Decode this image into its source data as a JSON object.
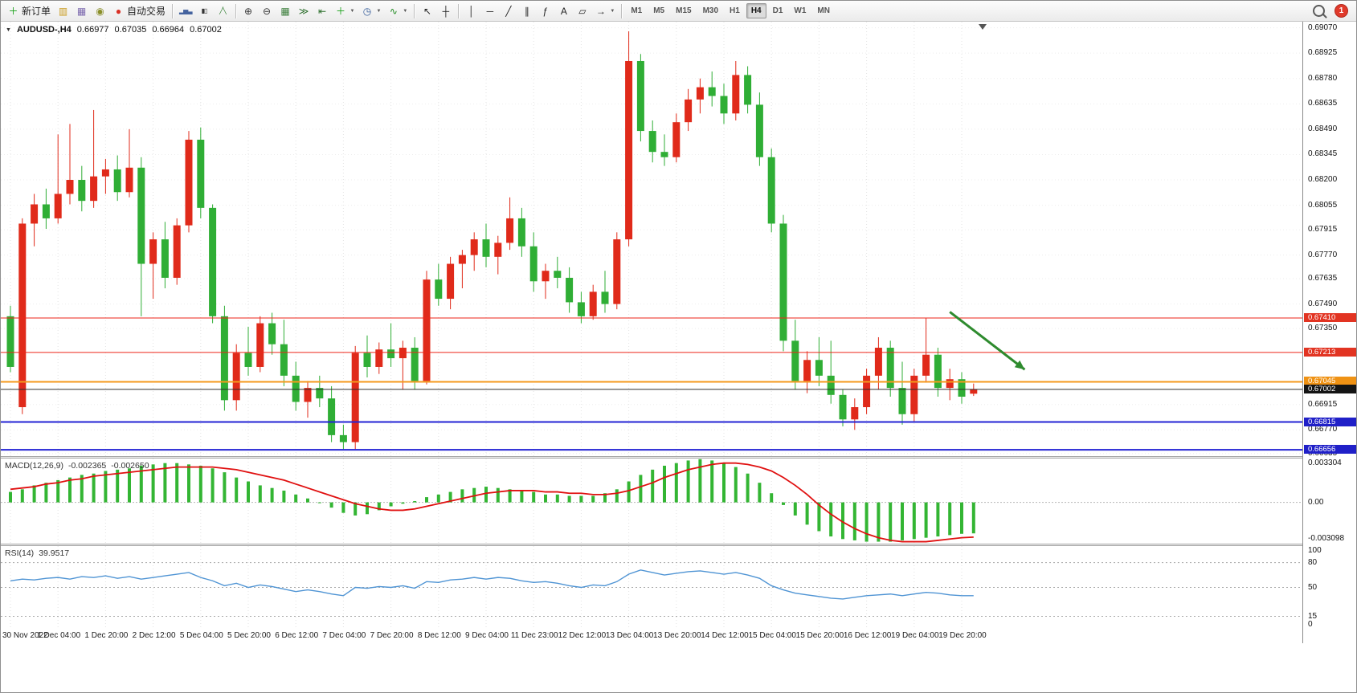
{
  "icons": {
    "caret_down": "▼"
  },
  "toolbar": {
    "items": [
      {
        "type": "button",
        "name": "new-order-button",
        "icon": "new-order-icon",
        "glyph": "＋",
        "glyph_color": "#16a016",
        "label": "新订单"
      },
      {
        "type": "button",
        "name": "charts-profile-button",
        "icon": "profile-icon",
        "glyph": "▥",
        "glyph_color": "#c99b1d"
      },
      {
        "type": "button",
        "name": "market-watch-button",
        "icon": "market-watch-icon",
        "glyph": "▦",
        "glyph_color": "#7b68ae"
      },
      {
        "type": "button",
        "name": "data-window-button",
        "icon": "data-window-icon",
        "glyph": "◉",
        "glyph_color": "#8a8f2a"
      },
      {
        "type": "button",
        "name": "autotrading-button",
        "icon": "autotrading-icon",
        "glyph": "●",
        "glyph_color": "#d93025",
        "label": "自动交易"
      },
      {
        "type": "divider"
      },
      {
        "type": "button",
        "name": "bar-chart-button",
        "icon": "bar-chart-icon",
        "glyph": "▂▅▃",
        "glyph_color": "#44639f",
        "small": true
      },
      {
        "type": "button",
        "name": "candlestick-chart-button",
        "icon": "candlestick-icon",
        "glyph": "▮▯",
        "glyph_color": "#333333",
        "small": true
      },
      {
        "type": "button",
        "name": "line-chart-button",
        "icon": "line-chart-icon",
        "glyph": "╱╲",
        "glyph_color": "#2a7a2a",
        "small": true
      },
      {
        "type": "divider"
      },
      {
        "type": "button",
        "name": "zoom-in-button",
        "icon": "zoom-in-icon",
        "glyph": "⊕",
        "glyph_color": "#333333"
      },
      {
        "type": "button",
        "name": "zoom-out-button",
        "icon": "zoom-out-icon",
        "glyph": "⊖",
        "glyph_color": "#333333"
      },
      {
        "type": "button",
        "name": "tile-windows-button",
        "icon": "tile-windows-icon",
        "glyph": "▦",
        "glyph_color": "#3a7d3a"
      },
      {
        "type": "button",
        "name": "auto-scroll-button",
        "icon": "auto-scroll-icon",
        "glyph": "≫",
        "glyph_color": "#2a6d2a"
      },
      {
        "type": "button",
        "name": "chart-shift-button",
        "icon": "chart-shift-icon",
        "glyph": "⇤",
        "glyph_color": "#2a6d2a"
      },
      {
        "type": "button",
        "name": "new-chart-button",
        "icon": "new-chart-icon",
        "glyph": "＋",
        "glyph_color": "#16a016",
        "caret": true
      },
      {
        "type": "button",
        "name": "period-button",
        "icon": "clock-icon",
        "glyph": "◷",
        "glyph_color": "#335b99",
        "caret": true
      },
      {
        "type": "button",
        "name": "indicators-button",
        "icon": "indicators-icon",
        "glyph": "∿",
        "glyph_color": "#1f8a1f",
        "caret": true
      },
      {
        "type": "divider"
      },
      {
        "type": "button",
        "name": "cursor-button",
        "icon": "cursor-icon",
        "glyph": "↖",
        "glyph_color": "#222222"
      },
      {
        "type": "button",
        "name": "crosshair-button",
        "icon": "crosshair-icon",
        "glyph": "┼",
        "glyph_color": "#222222"
      },
      {
        "type": "divider"
      },
      {
        "type": "button",
        "name": "vertical-line-button",
        "icon": "vertical-line-icon",
        "glyph": "│",
        "glyph_color": "#222222"
      },
      {
        "type": "button",
        "name": "horizontal-line-button",
        "icon": "horizontal-line-icon",
        "glyph": "─",
        "glyph_color": "#222222"
      },
      {
        "type": "button",
        "name": "trendline-button",
        "icon": "trendline-icon",
        "glyph": "╱",
        "glyph_color": "#222222"
      },
      {
        "type": "button",
        "name": "channel-button",
        "icon": "channel-icon",
        "glyph": "∥",
        "glyph_color": "#222222"
      },
      {
        "type": "button",
        "name": "fibonacci-button",
        "icon": "fibonacci-icon",
        "glyph": "ƒ",
        "glyph_color": "#222222"
      },
      {
        "type": "button",
        "name": "text-button",
        "icon": "text-icon",
        "glyph": "A",
        "glyph_color": "#222222"
      },
      {
        "type": "button",
        "name": "shapes-button",
        "icon": "shapes-icon",
        "glyph": "▱",
        "glyph_color": "#222222"
      },
      {
        "type": "button",
        "name": "arrow-tools-button",
        "icon": "arrow-tools-icon",
        "glyph": "→",
        "glyph_color": "#222222",
        "caret": true
      },
      {
        "type": "divider"
      }
    ],
    "timeframes": {
      "items": [
        "M1",
        "M5",
        "M15",
        "M30",
        "H1",
        "H4",
        "D1",
        "W1",
        "MN"
      ],
      "active": "H4"
    },
    "notification_count": "1"
  },
  "chart": {
    "header": {
      "symbol_period": "AUDUSD-,H4",
      "open": "0.66977",
      "high": "0.67035",
      "low": "0.66964",
      "close": "0.67002"
    }
  },
  "chart_data": {
    "type": "candlestick",
    "symbol": "AUDUSD-",
    "timeframe": "H4",
    "colors": {
      "up": "#e02a1a",
      "down": "#2fae35",
      "macd_hist": "#33b533",
      "macd_signal": "#e01010",
      "rsi_line": "#4f94d4",
      "grid": "#e3e3e3",
      "arrow": "#2e8b2e"
    },
    "price_axis": {
      "min": 0.6662,
      "max": 0.69105,
      "ticks": [
        "0.69070",
        "0.68925",
        "0.68780",
        "0.68635",
        "0.68490",
        "0.68345",
        "0.68200",
        "0.68055",
        "0.67915",
        "0.67770",
        "0.67635",
        "0.67490",
        "0.67350",
        "0.66915",
        "0.66770",
        "0.66635"
      ]
    },
    "x_labels": [
      "30 Nov 2022",
      "1 Dec 04:00",
      "1 Dec 20:00",
      "2 Dec 12:00",
      "5 Dec 04:00",
      "5 Dec 20:00",
      "6 Dec 12:00",
      "7 Dec 04:00",
      "7 Dec 20:00",
      "8 Dec 12:00",
      "9 Dec 04:00",
      "11 Dec 23:00",
      "12 Dec 12:00",
      "13 Dec 04:00",
      "13 Dec 20:00",
      "14 Dec 12:00",
      "15 Dec 04:00",
      "15 Dec 20:00",
      "16 Dec 12:00",
      "19 Dec 04:00",
      "19 Dec 20:00"
    ],
    "candles": [
      [
        0.6742,
        0.6748,
        0.671,
        0.6713
      ],
      [
        0.669,
        0.6798,
        0.6686,
        0.6795
      ],
      [
        0.6795,
        0.6812,
        0.6782,
        0.6806
      ],
      [
        0.6806,
        0.6815,
        0.6792,
        0.6798
      ],
      [
        0.6798,
        0.6846,
        0.6795,
        0.6812
      ],
      [
        0.6812,
        0.6852,
        0.6806,
        0.682
      ],
      [
        0.682,
        0.6828,
        0.6802,
        0.6808
      ],
      [
        0.6808,
        0.686,
        0.6804,
        0.6822
      ],
      [
        0.6822,
        0.6832,
        0.6812,
        0.6826
      ],
      [
        0.6826,
        0.6834,
        0.6808,
        0.6813
      ],
      [
        0.6813,
        0.6849,
        0.681,
        0.6827
      ],
      [
        0.6827,
        0.6833,
        0.6742,
        0.6772
      ],
      [
        0.6772,
        0.679,
        0.6752,
        0.6786
      ],
      [
        0.6786,
        0.6796,
        0.6758,
        0.6764
      ],
      [
        0.6764,
        0.6798,
        0.676,
        0.6794
      ],
      [
        0.6794,
        0.6848,
        0.679,
        0.6843
      ],
      [
        0.6843,
        0.685,
        0.6798,
        0.6804
      ],
      [
        0.6804,
        0.6806,
        0.6738,
        0.6742
      ],
      [
        0.6742,
        0.6748,
        0.6688,
        0.6694
      ],
      [
        0.6694,
        0.6726,
        0.6688,
        0.6721
      ],
      [
        0.6721,
        0.6736,
        0.6708,
        0.6713
      ],
      [
        0.6713,
        0.6742,
        0.671,
        0.6738
      ],
      [
        0.6738,
        0.6744,
        0.672,
        0.6726
      ],
      [
        0.6726,
        0.674,
        0.6702,
        0.6708
      ],
      [
        0.6708,
        0.6716,
        0.6688,
        0.6693
      ],
      [
        0.6693,
        0.6705,
        0.6684,
        0.6701
      ],
      [
        0.6701,
        0.6708,
        0.669,
        0.6695
      ],
      [
        0.6695,
        0.6702,
        0.667,
        0.6674
      ],
      [
        0.6674,
        0.668,
        0.6666,
        0.667
      ],
      [
        0.667,
        0.6725,
        0.6666,
        0.6721
      ],
      [
        0.6721,
        0.6731,
        0.6707,
        0.6713
      ],
      [
        0.6713,
        0.6727,
        0.6709,
        0.6723
      ],
      [
        0.6723,
        0.6738,
        0.6713,
        0.6718
      ],
      [
        0.6718,
        0.6728,
        0.67,
        0.6724
      ],
      [
        0.6724,
        0.673,
        0.67,
        0.6705
      ],
      [
        0.6705,
        0.6768,
        0.6703,
        0.6763
      ],
      [
        0.6763,
        0.6772,
        0.6748,
        0.6752
      ],
      [
        0.6752,
        0.6776,
        0.6746,
        0.6772
      ],
      [
        0.6772,
        0.678,
        0.6758,
        0.6777
      ],
      [
        0.6777,
        0.679,
        0.6768,
        0.6786
      ],
      [
        0.6786,
        0.6795,
        0.677,
        0.6776
      ],
      [
        0.6776,
        0.6788,
        0.6766,
        0.6784
      ],
      [
        0.6784,
        0.681,
        0.678,
        0.6798
      ],
      [
        0.6798,
        0.6804,
        0.6776,
        0.6782
      ],
      [
        0.6782,
        0.679,
        0.6756,
        0.6762
      ],
      [
        0.6762,
        0.6772,
        0.6752,
        0.6768
      ],
      [
        0.6768,
        0.6776,
        0.6758,
        0.6764
      ],
      [
        0.6764,
        0.677,
        0.6744,
        0.675
      ],
      [
        0.675,
        0.6756,
        0.6738,
        0.6742
      ],
      [
        0.6742,
        0.676,
        0.674,
        0.6756
      ],
      [
        0.6756,
        0.6768,
        0.6744,
        0.6749
      ],
      [
        0.6749,
        0.679,
        0.6746,
        0.6786
      ],
      [
        0.6786,
        0.6905,
        0.6782,
        0.6888
      ],
      [
        0.6888,
        0.6892,
        0.6842,
        0.6848
      ],
      [
        0.6848,
        0.6854,
        0.683,
        0.6836
      ],
      [
        0.6836,
        0.6846,
        0.6828,
        0.6833
      ],
      [
        0.6833,
        0.6858,
        0.683,
        0.6853
      ],
      [
        0.6853,
        0.6872,
        0.6848,
        0.6866
      ],
      [
        0.6866,
        0.6878,
        0.6858,
        0.6873
      ],
      [
        0.6873,
        0.6882,
        0.6862,
        0.6868
      ],
      [
        0.6868,
        0.6875,
        0.6852,
        0.6858
      ],
      [
        0.6858,
        0.6888,
        0.6854,
        0.688
      ],
      [
        0.688,
        0.6885,
        0.6858,
        0.6863
      ],
      [
        0.6863,
        0.687,
        0.6828,
        0.6833
      ],
      [
        0.6833,
        0.6838,
        0.679,
        0.6795
      ],
      [
        0.6795,
        0.68,
        0.6722,
        0.6728
      ],
      [
        0.6728,
        0.674,
        0.67,
        0.6705
      ],
      [
        0.6705,
        0.6722,
        0.6698,
        0.6717
      ],
      [
        0.6717,
        0.673,
        0.6702,
        0.6708
      ],
      [
        0.6708,
        0.6728,
        0.6692,
        0.6697
      ],
      [
        0.6697,
        0.67,
        0.6679,
        0.6683
      ],
      [
        0.6683,
        0.6695,
        0.6677,
        0.669
      ],
      [
        0.669,
        0.6712,
        0.6686,
        0.6708
      ],
      [
        0.6708,
        0.673,
        0.67,
        0.6724
      ],
      [
        0.6724,
        0.6728,
        0.6696,
        0.6701
      ],
      [
        0.6701,
        0.6716,
        0.668,
        0.6686
      ],
      [
        0.6686,
        0.6712,
        0.6682,
        0.6708
      ],
      [
        0.6708,
        0.6741,
        0.6704,
        0.672
      ],
      [
        0.672,
        0.6724,
        0.6696,
        0.6701
      ],
      [
        0.6701,
        0.6712,
        0.6694,
        0.6706
      ],
      [
        0.6706,
        0.671,
        0.6692,
        0.6696
      ],
      [
        0.66977,
        0.67035,
        0.66964,
        0.67002
      ]
    ],
    "levels": [
      {
        "price": 0.6741,
        "label": "0.67410",
        "color": "#ee2519",
        "badge_color": "#e23422",
        "width": 1
      },
      {
        "price": 0.67213,
        "label": "0.67213",
        "color": "#ee2519",
        "badge_color": "#e23422",
        "width": 1
      },
      {
        "price": 0.67045,
        "label": "0.67045",
        "color": "#f5991c",
        "badge_color": "#ef9214",
        "width": 2
      },
      {
        "price": 0.67002,
        "label": "0.67002",
        "color": "#2b2b2b",
        "badge_color": "#141414",
        "width": 1
      },
      {
        "price": 0.66815,
        "label": "0.66815",
        "color": "#2323d4",
        "badge_color": "#2020c8",
        "width": 2
      },
      {
        "price": 0.66656,
        "label": "0.66656",
        "color": "#2323d4",
        "badge_color": "#2020c8",
        "width": 2
      }
    ],
    "arrow": {
      "from_index": 79,
      "from_price": 0.67445,
      "to_index": 85.3,
      "to_price": 0.67115,
      "color": "#2e8b2e"
    },
    "macd": {
      "label": "MACD(12,26,9)",
      "value_main": "-0.002365",
      "value_signal": "-0.002650",
      "axis_max": 0.00335,
      "axis_min": -0.00315,
      "axis_ticks": [
        {
          "label": "0.003304",
          "value": 0.003304
        },
        {
          "label": "0.00",
          "value": 0.0
        },
        {
          "label": "-0.003098",
          "value": -0.003098
        }
      ],
      "histogram": [
        0.0008,
        0.001,
        0.0013,
        0.0015,
        0.0017,
        0.0019,
        0.0021,
        0.0022,
        0.0024,
        0.0025,
        0.0026,
        0.0028,
        0.0029,
        0.003,
        0.003,
        0.0029,
        0.0028,
        0.0026,
        0.0023,
        0.0019,
        0.0016,
        0.0013,
        0.0011,
        0.0009,
        0.0006,
        0.0003,
        0.0,
        -0.0004,
        -0.0008,
        -0.001,
        -0.0009,
        -0.0006,
        -0.0003,
        -0.0001,
        0.0001,
        0.0004,
        0.0006,
        0.0008,
        0.001,
        0.0011,
        0.0012,
        0.0011,
        0.001,
        0.0009,
        0.0008,
        0.0006,
        0.0006,
        0.0005,
        0.0005,
        0.0005,
        0.0007,
        0.001,
        0.0016,
        0.0021,
        0.0025,
        0.0028,
        0.003,
        0.0032,
        0.0033,
        0.0032,
        0.003,
        0.0027,
        0.0022,
        0.0015,
        0.0007,
        -0.0002,
        -0.001,
        -0.0017,
        -0.0022,
        -0.0026,
        -0.0028,
        -0.0029,
        -0.003,
        -0.003,
        -0.003,
        -0.0029,
        -0.0028,
        -0.0027,
        -0.0026,
        -0.0025,
        -0.0024,
        -0.002365
      ],
      "signal": [
        0.001,
        0.0011,
        0.0012,
        0.0014,
        0.0015,
        0.0017,
        0.0018,
        0.002,
        0.0021,
        0.0022,
        0.0023,
        0.0024,
        0.0025,
        0.0026,
        0.0027,
        0.0027,
        0.0027,
        0.0027,
        0.0026,
        0.0025,
        0.0023,
        0.0021,
        0.0019,
        0.0017,
        0.0014,
        0.0011,
        0.0008,
        0.0005,
        0.0002,
        -0.0001,
        -0.0003,
        -0.0005,
        -0.0006,
        -0.0006,
        -0.0005,
        -0.0003,
        -0.0001,
        0.0001,
        0.0003,
        0.0005,
        0.0007,
        0.0008,
        0.0009,
        0.0009,
        0.0009,
        0.0008,
        0.0008,
        0.0007,
        0.0007,
        0.0006,
        0.0006,
        0.0007,
        0.0009,
        0.0012,
        0.0015,
        0.0019,
        0.0022,
        0.0025,
        0.0027,
        0.0029,
        0.003,
        0.003,
        0.0029,
        0.0027,
        0.0024,
        0.0019,
        0.0013,
        0.0006,
        -0.0002,
        -0.0009,
        -0.0015,
        -0.002,
        -0.0024,
        -0.0027,
        -0.0029,
        -0.003,
        -0.003,
        -0.003,
        -0.0029,
        -0.0028,
        -0.0027,
        -0.00265
      ]
    },
    "rsi": {
      "label": "RSI(14)",
      "value": "39.9517",
      "axis_ticks": [
        {
          "label": "100",
          "value": 100
        },
        {
          "label": "80",
          "value": 80
        },
        {
          "label": "50",
          "value": 50
        },
        {
          "label": "15",
          "value": 15
        },
        {
          "label": "0",
          "value": 0
        }
      ],
      "levels": [
        80,
        50,
        15
      ],
      "values": [
        58,
        60,
        59,
        61,
        62,
        60,
        63,
        62,
        64,
        61,
        63,
        60,
        62,
        64,
        66,
        68,
        62,
        58,
        52,
        55,
        50,
        53,
        51,
        48,
        45,
        47,
        45,
        42,
        40,
        50,
        49,
        51,
        50,
        52,
        49,
        57,
        56,
        59,
        60,
        62,
        60,
        62,
        61,
        58,
        56,
        57,
        55,
        52,
        50,
        53,
        52,
        57,
        66,
        71,
        68,
        65,
        67,
        69,
        70,
        68,
        66,
        68,
        65,
        61,
        52,
        47,
        43,
        41,
        39,
        37,
        36,
        38,
        40,
        41,
        42,
        40,
        42,
        44,
        43,
        41,
        40,
        39.95
      ]
    }
  }
}
